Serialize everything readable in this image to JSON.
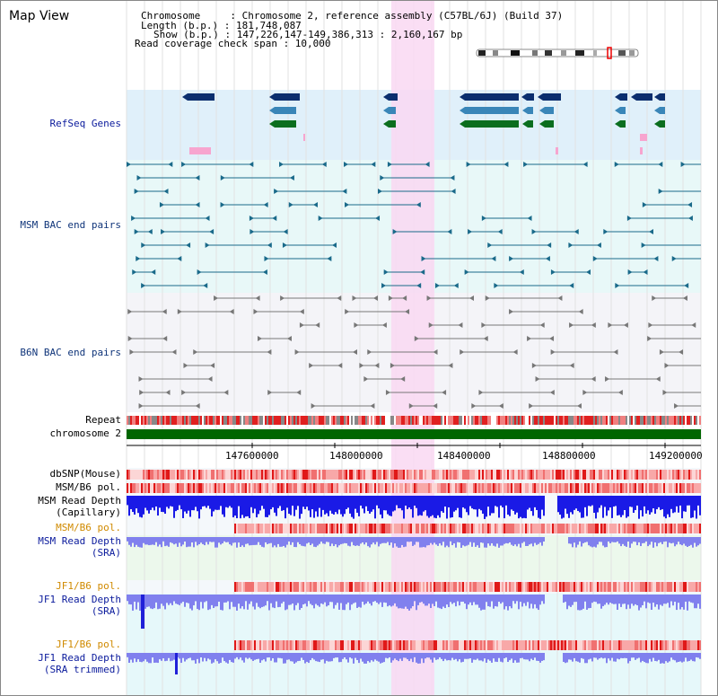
{
  "window": {
    "title": "Map View"
  },
  "info": {
    "chromosome": "Chromosome     : Chromosome 2, reference assembly (C57BL/6J) (Build 37)",
    "length": "Length (b.p.) : 181,748,087",
    "show": "Show (b.p.) : 147,226,147-149,386,313 : 2,160,167 bp",
    "coverage": "Read coverage check span : 10,000"
  },
  "tracks": {
    "refseq": "RefSeq Genes",
    "msm_bac": "MSM BAC end pairs",
    "b6n_bac": "B6N BAC end pairs",
    "repeat": "Repeat",
    "chromosome": "chromosome 2",
    "dbsnp": "dbSNP(Mouse)",
    "msm_b6_pol_1": "MSM/B6 pol.",
    "msm_depth_cap_1": "MSM Read Depth",
    "msm_depth_cap_2": "(Capillary)",
    "msm_b6_pol_2": "MSM/B6 pol.",
    "msm_depth_sra_1": "MSM Read Depth",
    "msm_depth_sra_2": "(SRA)",
    "jf1_b6_pol_1": "JF1/B6 pol.",
    "jf1_depth_sra_1": "JF1 Read Depth",
    "jf1_depth_sra_2": "(SRA)",
    "jf1_b6_pol_2": "JF1/B6 pol.",
    "jf1_depth_trim_1": "JF1 Read Depth",
    "jf1_depth_trim_2": "(SRA trimmed)"
  },
  "axis": {
    "ticks": [
      "147600000",
      "148000000",
      "148400000",
      "148800000",
      "149200000"
    ]
  },
  "colors": {
    "refseq_bg": "#e0f0fa",
    "msm_bac_bg": "#e8f8f8",
    "b6n_bac_bg": "#f4f4f8",
    "highlight": "#f9d8f2",
    "chromosome_bar": "#006600",
    "depth_blue": "#1a1ae6",
    "depth_light": "#8080ee",
    "pol_red": "#ee2222"
  }
}
